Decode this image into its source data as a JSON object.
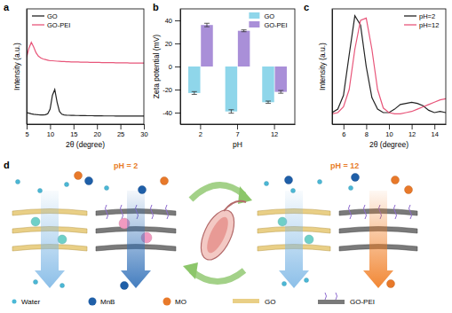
{
  "chart_data": [
    {
      "type": "line",
      "title": "a",
      "x_label": "2θ (degree)",
      "y_label": "Intensity (a.u.)",
      "x": [
        5,
        5.5,
        6,
        6.5,
        7,
        7.5,
        8,
        8.5,
        9,
        9.5,
        10,
        10.5,
        11,
        11.5,
        12,
        12.5,
        13,
        13.5,
        14,
        14.5,
        15,
        15.5,
        16,
        16.5,
        17,
        17.5,
        18,
        18.5,
        19,
        19.5,
        20,
        20.5,
        21,
        21.5,
        22,
        22.5,
        23,
        23.5,
        24,
        24.5,
        25,
        25.5,
        26,
        26.5,
        27,
        27.5,
        28,
        28.5,
        29,
        29.5,
        30
      ],
      "series": [
        {
          "name": "GO",
          "color": "#222222",
          "values": [
            1.0,
            0.95,
            0.9,
            0.86,
            0.83,
            0.81,
            0.8,
            0.8,
            0.82,
            0.9,
            1.3,
            2.5,
            3.0,
            1.9,
            1.1,
            0.86,
            0.8,
            0.78,
            0.77,
            0.76,
            0.76,
            0.75,
            0.75,
            0.74,
            0.74,
            0.74,
            0.73,
            0.73,
            0.73,
            0.72,
            0.72,
            0.72,
            0.72,
            0.71,
            0.71,
            0.71,
            0.71,
            0.71,
            0.7,
            0.7,
            0.7,
            0.7,
            0.7,
            0.7,
            0.7,
            0.7,
            0.7,
            0.7,
            0.7,
            0.7,
            0.7
          ]
        },
        {
          "name": "GO-PEI",
          "color": "#e8567a",
          "values": [
            5.8,
            6.6,
            7.1,
            6.7,
            6.2,
            5.9,
            5.75,
            5.65,
            5.6,
            5.55,
            5.5,
            5.5,
            5.48,
            5.46,
            5.45,
            5.44,
            5.43,
            5.42,
            5.41,
            5.4,
            5.4,
            5.39,
            5.39,
            5.38,
            5.38,
            5.37,
            5.37,
            5.36,
            5.36,
            5.35,
            5.35,
            5.35,
            5.34,
            5.34,
            5.34,
            5.33,
            5.33,
            5.33,
            5.32,
            5.32,
            5.32,
            5.31,
            5.31,
            5.31,
            5.3,
            5.3,
            5.3,
            5.3,
            5.3,
            5.3,
            5.3
          ]
        }
      ],
      "xlim": [
        5,
        30
      ],
      "xticks": [
        5,
        10,
        15,
        20,
        25,
        30
      ],
      "ylim": [
        0,
        10
      ],
      "tick_labels": "x",
      "legend": "upper left"
    },
    {
      "type": "bar",
      "title": "b",
      "x_label": "pH",
      "y_label": "Zeta potential (mV)",
      "categories": [
        "2",
        "7",
        "12"
      ],
      "series": [
        {
          "name": "GO",
          "color": "#8fd6ea",
          "values": [
            -23,
            -39,
            -31
          ],
          "errors": [
            1.2,
            1.5,
            1.0
          ]
        },
        {
          "name": "GO-PEI",
          "color": "#a98fd8",
          "values": [
            36,
            31,
            -22
          ],
          "errors": [
            1.5,
            0.8,
            1.2
          ]
        }
      ],
      "ylim": [
        -50,
        50
      ],
      "yticks": [
        -40,
        -20,
        0,
        20,
        40
      ],
      "legend": "upper right"
    },
    {
      "type": "line",
      "title": "c",
      "x_label": "2θ (degree)",
      "y_label": "Intensity (a.u.)",
      "x": [
        5,
        5.5,
        6,
        6.5,
        7,
        7.5,
        8,
        8.5,
        9,
        9.5,
        10,
        10.5,
        11,
        11.5,
        12,
        12.5,
        13,
        13.5,
        14,
        14.5,
        15
      ],
      "series": [
        {
          "name": "pH=2",
          "color": "#222222",
          "values": [
            1.0,
            1.3,
            2.5,
            6.0,
            9.4,
            8.6,
            5.0,
            2.3,
            1.3,
            1.0,
            1.0,
            1.3,
            1.7,
            1.8,
            1.9,
            1.8,
            1.6,
            1.2,
            1.0,
            1.1,
            1.0
          ]
        },
        {
          "name": "pH=12",
          "color": "#e8567a",
          "values": [
            0.9,
            1.0,
            1.5,
            3.0,
            6.5,
            9.0,
            9.2,
            6.5,
            3.0,
            1.4,
            1.0,
            0.9,
            0.9,
            1.0,
            1.1,
            1.3,
            1.5,
            1.7,
            1.9,
            2.1,
            2.2
          ]
        }
      ],
      "xlim": [
        5,
        15
      ],
      "xticks": [
        6,
        8,
        10,
        12,
        14
      ],
      "ylim": [
        0,
        10
      ],
      "tick_labels": "x",
      "legend": "upper right"
    }
  ],
  "diagram": {
    "label": "d",
    "left_condition": "pH = 2",
    "right_condition": "pH = 12",
    "legend": [
      {
        "label": "Water"
      },
      {
        "label": "MnB"
      },
      {
        "label": "MO"
      },
      {
        "label": "GO"
      },
      {
        "label": "GO-PEI"
      }
    ]
  }
}
